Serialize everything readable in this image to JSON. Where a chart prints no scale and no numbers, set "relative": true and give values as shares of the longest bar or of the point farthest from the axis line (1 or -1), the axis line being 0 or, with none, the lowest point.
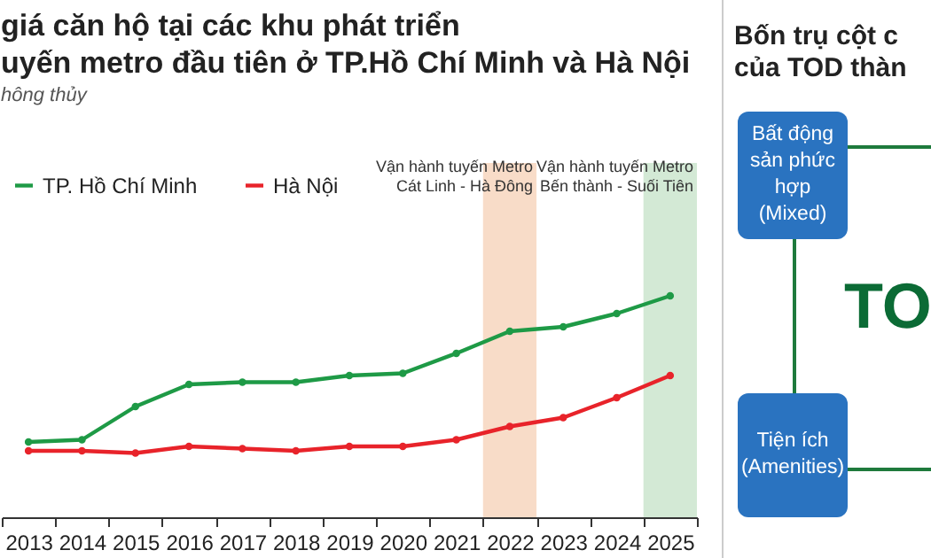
{
  "chart_data": [
    {
      "type": "line",
      "title": "giá căn hộ tại các khu phát triển\nuyến metro đầu tiên ở TP.Hồ Chí Minh và Hà Nội",
      "subtitle": "hông thủy",
      "relative": true,
      "categories": [
        "2013",
        "2014",
        "2015",
        "2016",
        "2017",
        "2018",
        "2019",
        "2020",
        "2021",
        "2022",
        "2023",
        "2024",
        "2025"
      ],
      "series": [
        {
          "name": "TP. Hồ Chí Minh",
          "color": "#1e9a46",
          "values": [
            0.34,
            0.35,
            0.5,
            0.6,
            0.61,
            0.61,
            0.64,
            0.65,
            0.74,
            0.84,
            0.86,
            0.92,
            1
          ]
        },
        {
          "name": "Hà Nội",
          "color": "#e8232a",
          "values": [
            0.3,
            0.3,
            0.29,
            0.32,
            0.31,
            0.3,
            0.32,
            0.32,
            0.35,
            0.41,
            0.45,
            0.54,
            0.64
          ]
        }
      ],
      "bands": [
        {
          "axis": "x",
          "from": "2022",
          "to": "2022",
          "label": "Vận hành tuyến Metro\nCát Linh - Hà Đông",
          "color": "#f8dcc8"
        },
        {
          "axis": "x",
          "from": "2025",
          "to": "2025",
          "label": "Vận hành tuyến Metro\nBến thành - Suối Tiên",
          "color": "#d3e9d5"
        }
      ],
      "legend": "top left",
      "marker": "circle",
      "line_style": "solid"
    },
    {
      "type": "other",
      "title": "Bốn trụ cột c\ncủa TOD thàn",
      "annotations": [
        "Bất động sản phức hợp (Mixed)",
        "TO",
        "Tiện ích (Amenities)"
      ]
    }
  ]
}
